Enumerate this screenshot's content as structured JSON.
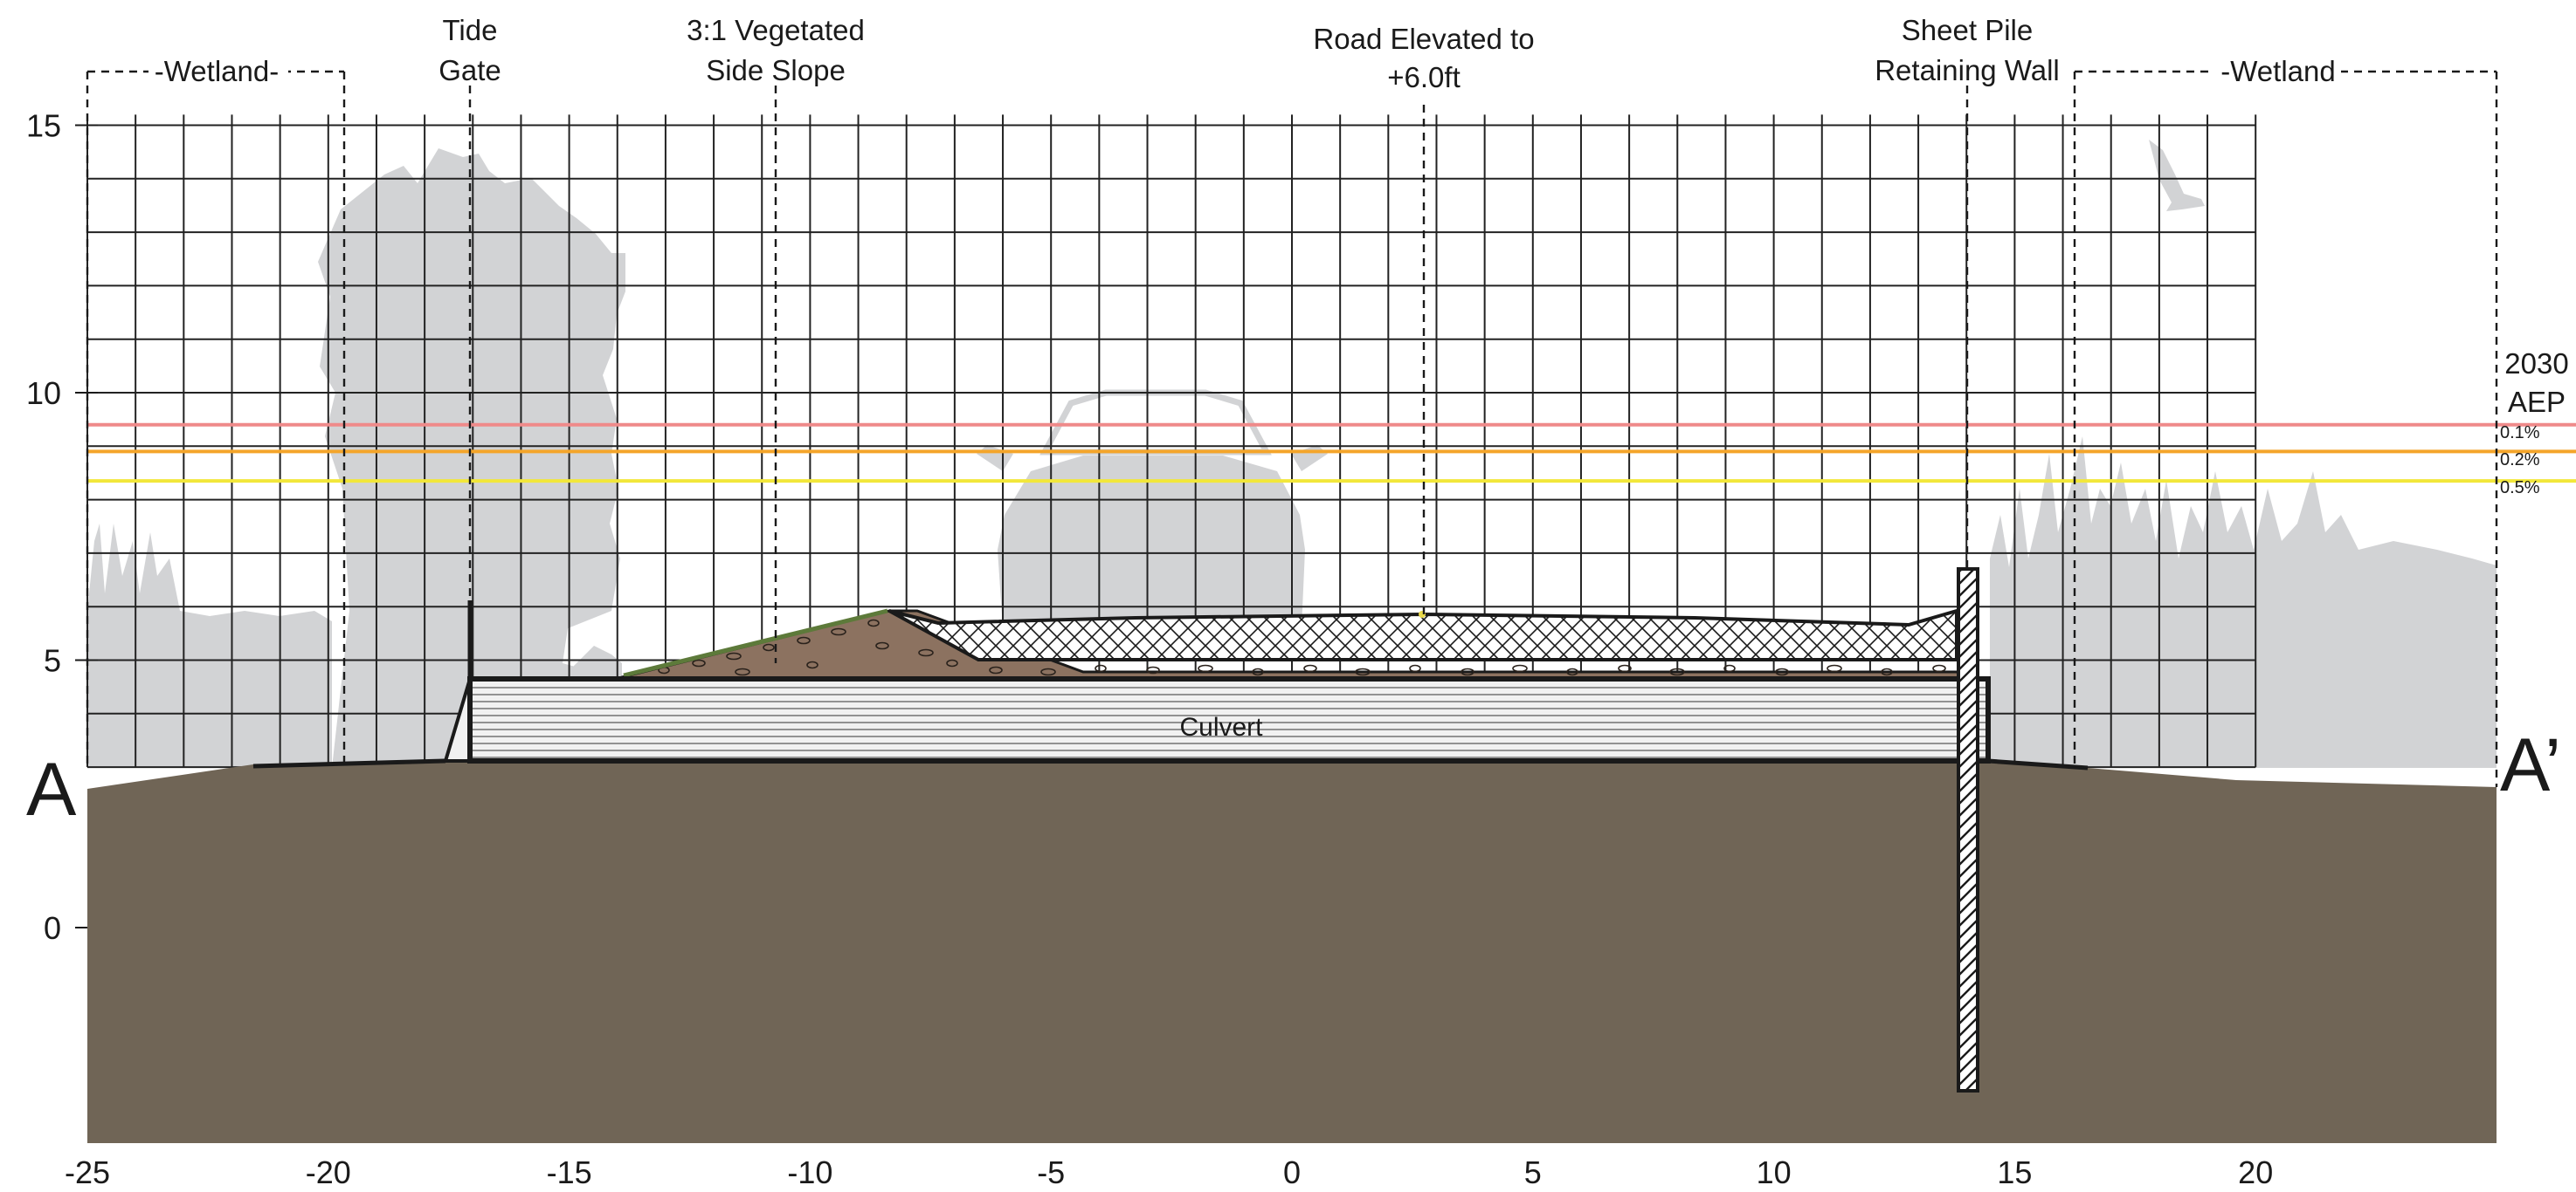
{
  "diagram": {
    "x_ticks": [
      "-25",
      "-20",
      "-15",
      "-10",
      "-5",
      "0",
      "5",
      "10",
      "15",
      "20"
    ],
    "y_ticks": [
      "15",
      "10",
      "5",
      "0"
    ],
    "section_start_label": "A",
    "section_end_label": "A’",
    "culvert_label": "Culvert",
    "callouts": {
      "wetland_left": "-Wetland-",
      "tide_gate": [
        "Tide",
        "Gate"
      ],
      "vegetated_slope": [
        "3:1 Vegetated",
        "Side Slope"
      ],
      "road_elevated": [
        "Road Elevated to",
        "+6.0ft"
      ],
      "sheet_pile": [
        "Sheet Pile",
        "Retaining Wall"
      ],
      "wetland_right": "-Wetland"
    },
    "aep_legend": {
      "year": "2030",
      "label": "AEP",
      "items": [
        {
          "label": "0.1%",
          "elevation": 9.4,
          "color": "#ef8a8a"
        },
        {
          "label": "0.2%",
          "elevation": 8.9,
          "color": "#f4a52a"
        },
        {
          "label": "0.5%",
          "elevation": 8.35,
          "color": "#f2e73a"
        }
      ]
    },
    "colors": {
      "ground": "#706556",
      "fill_soil": "#8c7260",
      "silhouette": "#d2d3d5",
      "grid": "#222222",
      "grass": "#5d7a3a"
    },
    "icons": [
      "tree-silhouette-icon",
      "car-silhouette-icon",
      "bird-silhouette-icon",
      "grass-silhouette-icon"
    ]
  }
}
